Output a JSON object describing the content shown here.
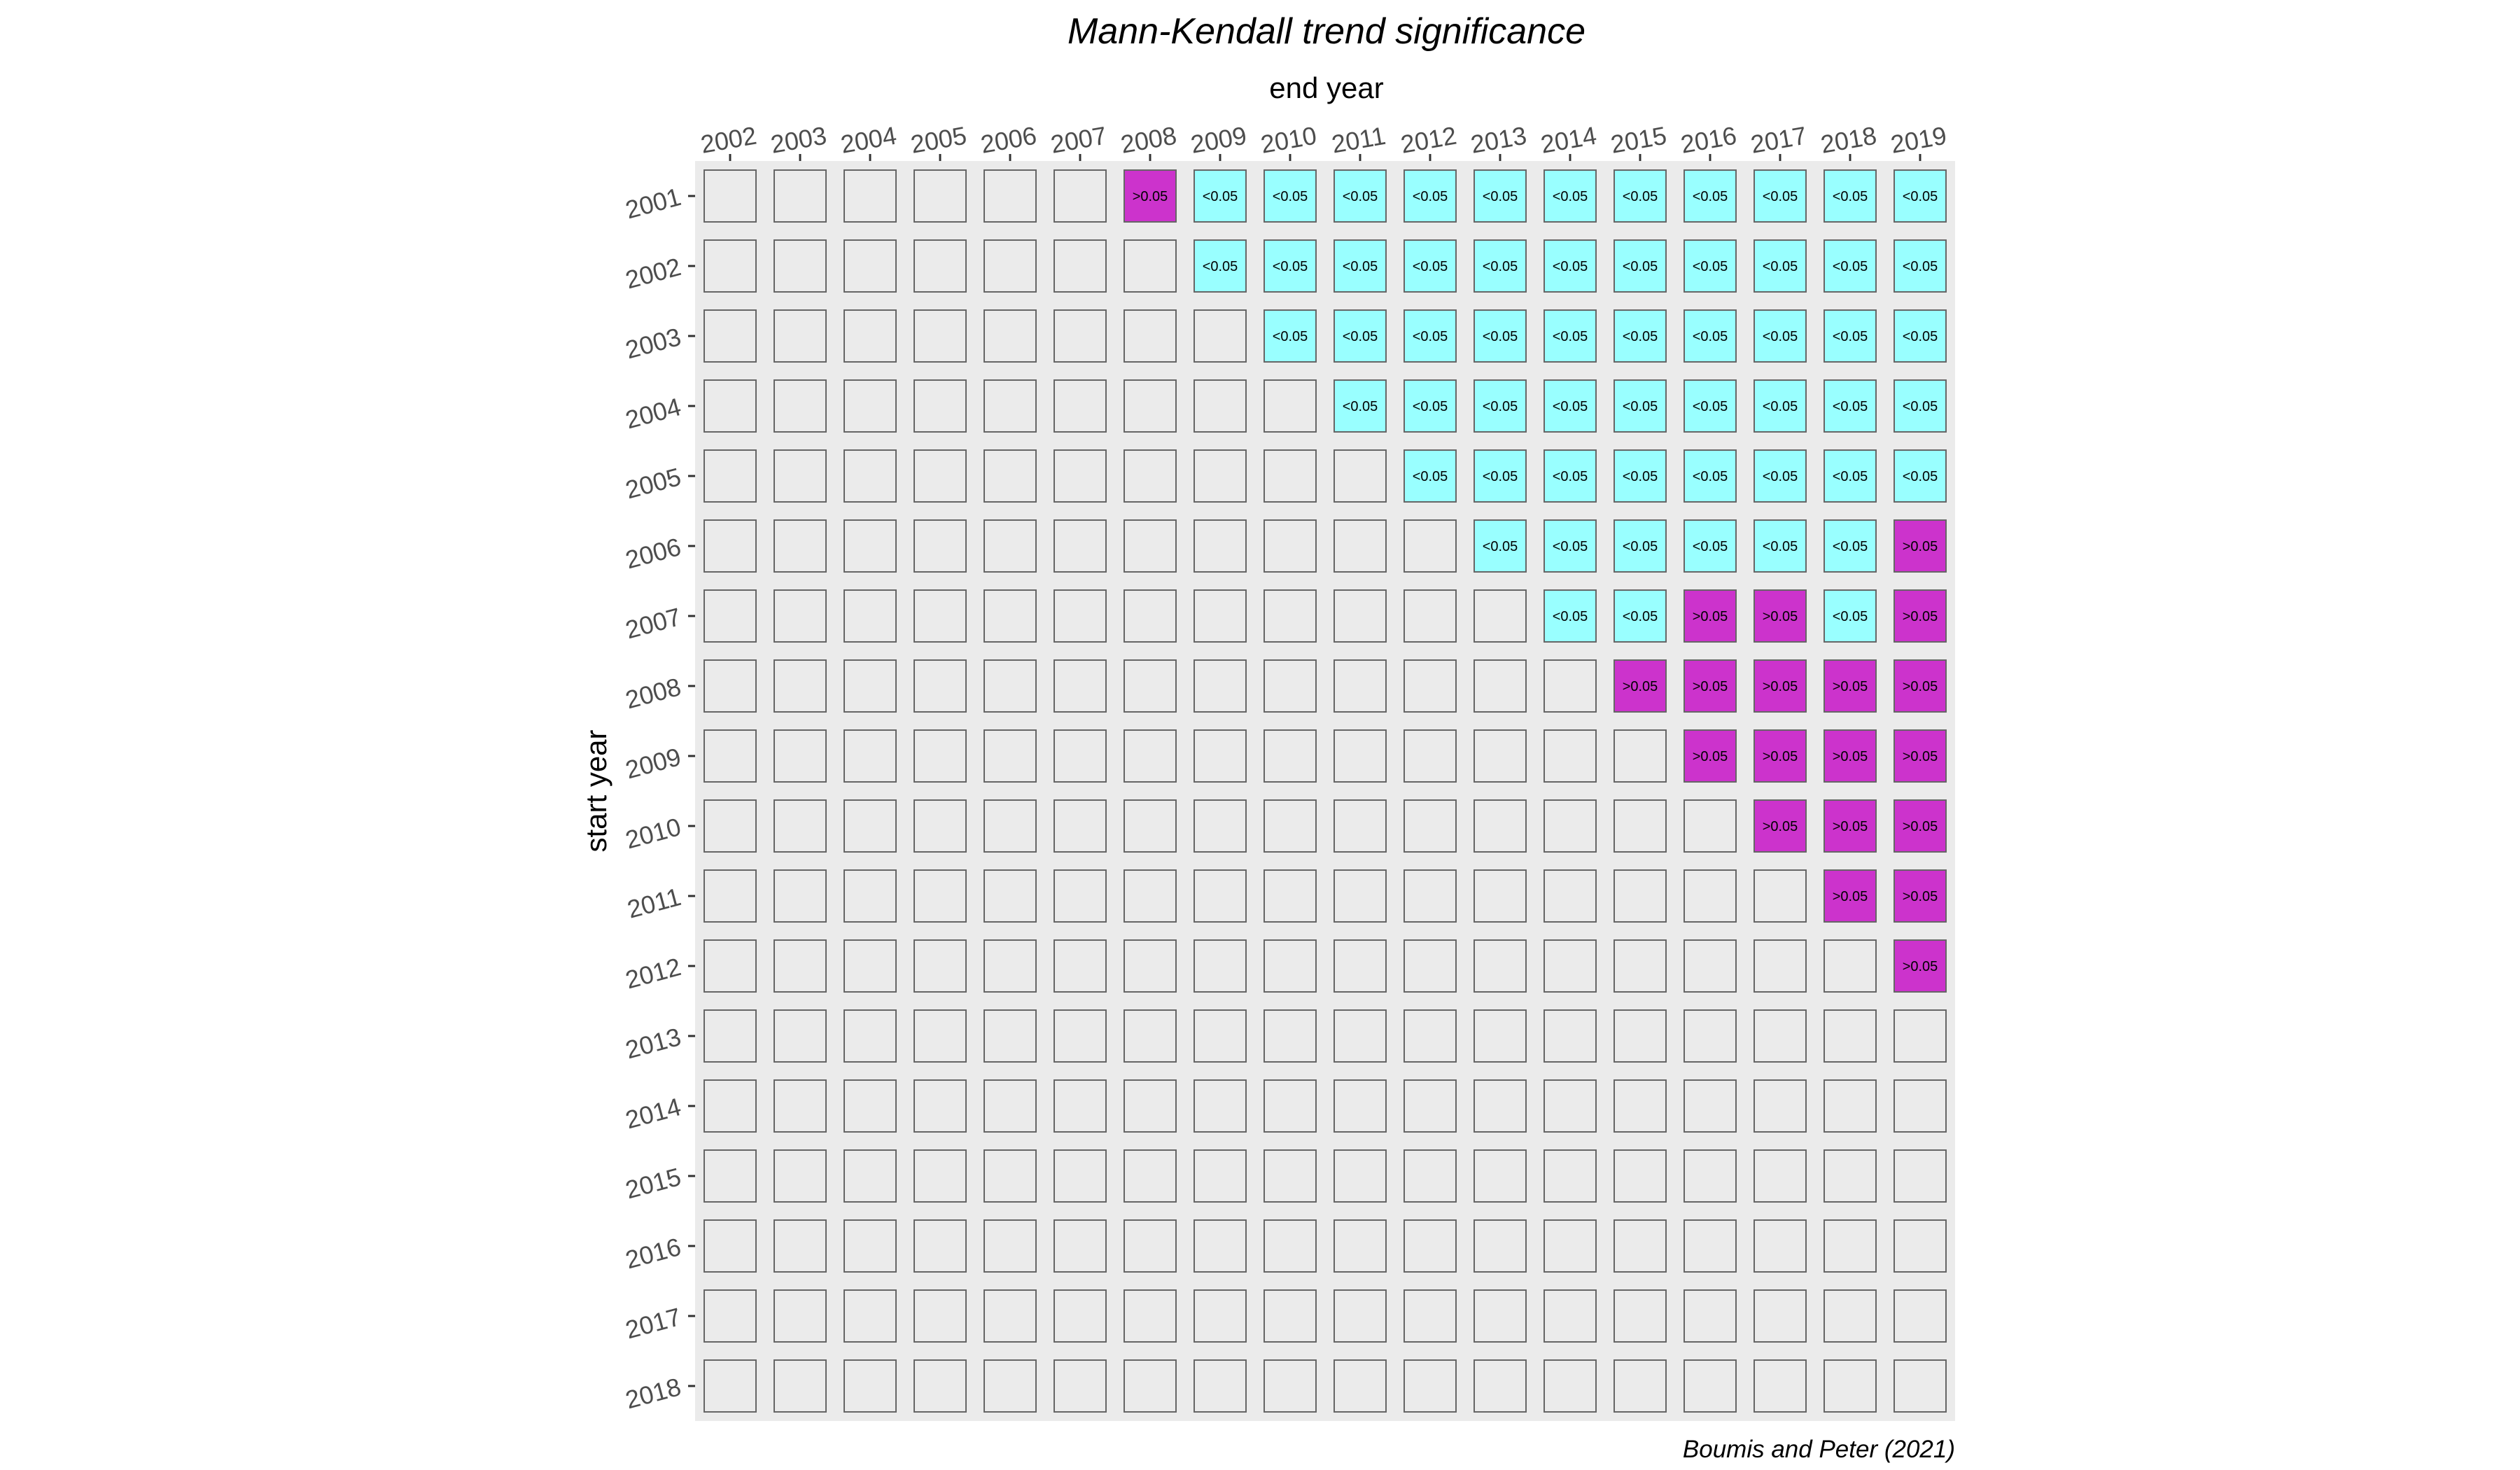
{
  "chart_data": {
    "type": "heatmap",
    "title": "Mann-Kendall trend significance",
    "xlabel": "end year",
    "ylabel": "start year",
    "caption": "Boumis and Peter (2021)",
    "x_axis_position": "top",
    "x_categories": [
      "2002",
      "2003",
      "2004",
      "2005",
      "2006",
      "2007",
      "2008",
      "2009",
      "2010",
      "2011",
      "2012",
      "2013",
      "2014",
      "2015",
      "2016",
      "2017",
      "2018",
      "2019"
    ],
    "y_categories": [
      "2001",
      "2002",
      "2003",
      "2004",
      "2005",
      "2006",
      "2007",
      "2008",
      "2009",
      "2010",
      "2011",
      "2012",
      "2013",
      "2014",
      "2015",
      "2016",
      "2017",
      "2018"
    ],
    "colors": {
      "panel": "#ebebeb",
      "empty_cell": "#ebebeb",
      "significant": "#99ffff",
      "not_significant": "#cc33cc",
      "cell_border": "#666666"
    },
    "legend": "none",
    "grid": false,
    "cells": [
      [
        "",
        "",
        "",
        "",
        "",
        "",
        ">0.05",
        "<0.05",
        "<0.05",
        "<0.05",
        "<0.05",
        "<0.05",
        "<0.05",
        "<0.05",
        "<0.05",
        "<0.05",
        "<0.05",
        "<0.05"
      ],
      [
        "",
        "",
        "",
        "",
        "",
        "",
        "",
        "<0.05",
        "<0.05",
        "<0.05",
        "<0.05",
        "<0.05",
        "<0.05",
        "<0.05",
        "<0.05",
        "<0.05",
        "<0.05",
        "<0.05"
      ],
      [
        "",
        "",
        "",
        "",
        "",
        "",
        "",
        "",
        "<0.05",
        "<0.05",
        "<0.05",
        "<0.05",
        "<0.05",
        "<0.05",
        "<0.05",
        "<0.05",
        "<0.05",
        "<0.05"
      ],
      [
        "",
        "",
        "",
        "",
        "",
        "",
        "",
        "",
        "",
        "<0.05",
        "<0.05",
        "<0.05",
        "<0.05",
        "<0.05",
        "<0.05",
        "<0.05",
        "<0.05",
        "<0.05"
      ],
      [
        "",
        "",
        "",
        "",
        "",
        "",
        "",
        "",
        "",
        "",
        "<0.05",
        "<0.05",
        "<0.05",
        "<0.05",
        "<0.05",
        "<0.05",
        "<0.05",
        "<0.05"
      ],
      [
        "",
        "",
        "",
        "",
        "",
        "",
        "",
        "",
        "",
        "",
        "",
        "<0.05",
        "<0.05",
        "<0.05",
        "<0.05",
        "<0.05",
        "<0.05",
        ">0.05"
      ],
      [
        "",
        "",
        "",
        "",
        "",
        "",
        "",
        "",
        "",
        "",
        "",
        "",
        "<0.05",
        "<0.05",
        ">0.05",
        ">0.05",
        "<0.05",
        ">0.05"
      ],
      [
        "",
        "",
        "",
        "",
        "",
        "",
        "",
        "",
        "",
        "",
        "",
        "",
        "",
        ">0.05",
        ">0.05",
        ">0.05",
        ">0.05",
        ">0.05"
      ],
      [
        "",
        "",
        "",
        "",
        "",
        "",
        "",
        "",
        "",
        "",
        "",
        "",
        "",
        "",
        ">0.05",
        ">0.05",
        ">0.05",
        ">0.05"
      ],
      [
        "",
        "",
        "",
        "",
        "",
        "",
        "",
        "",
        "",
        "",
        "",
        "",
        "",
        "",
        "",
        ">0.05",
        ">0.05",
        ">0.05"
      ],
      [
        "",
        "",
        "",
        "",
        "",
        "",
        "",
        "",
        "",
        "",
        "",
        "",
        "",
        "",
        "",
        "",
        ">0.05",
        ">0.05"
      ],
      [
        "",
        "",
        "",
        "",
        "",
        "",
        "",
        "",
        "",
        "",
        "",
        "",
        "",
        "",
        "",
        "",
        "",
        ">0.05"
      ],
      [
        "",
        "",
        "",
        "",
        "",
        "",
        "",
        "",
        "",
        "",
        "",
        "",
        "",
        "",
        "",
        "",
        "",
        ""
      ],
      [
        "",
        "",
        "",
        "",
        "",
        "",
        "",
        "",
        "",
        "",
        "",
        "",
        "",
        "",
        "",
        "",
        "",
        ""
      ],
      [
        "",
        "",
        "",
        "",
        "",
        "",
        "",
        "",
        "",
        "",
        "",
        "",
        "",
        "",
        "",
        "",
        "",
        ""
      ],
      [
        "",
        "",
        "",
        "",
        "",
        "",
        "",
        "",
        "",
        "",
        "",
        "",
        "",
        "",
        "",
        "",
        "",
        ""
      ],
      [
        "",
        "",
        "",
        "",
        "",
        "",
        "",
        "",
        "",
        "",
        "",
        "",
        "",
        "",
        "",
        "",
        "",
        ""
      ],
      [
        "",
        "",
        "",
        "",
        "",
        "",
        "",
        "",
        "",
        "",
        "",
        "",
        "",
        "",
        "",
        "",
        "",
        ""
      ]
    ]
  }
}
